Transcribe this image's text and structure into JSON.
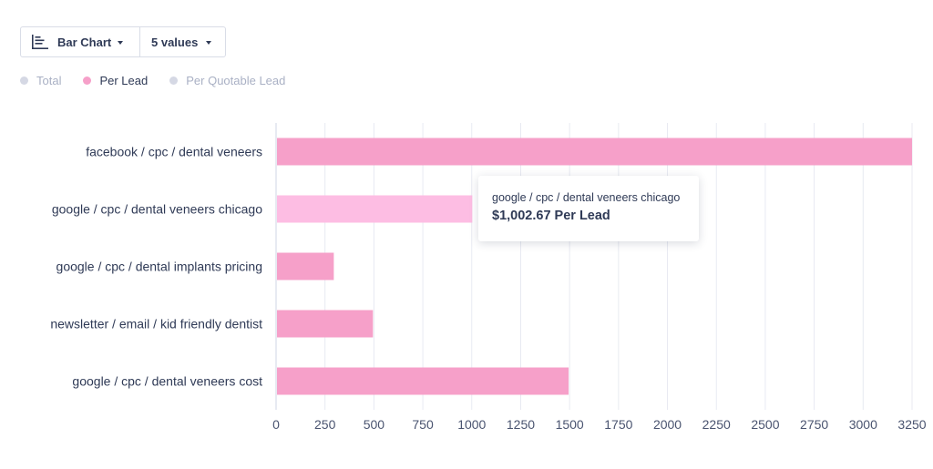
{
  "toolbar": {
    "chart_type_label": "Bar Chart",
    "values_label": "5 values"
  },
  "legend": [
    {
      "label": "Total",
      "color": "#d5d8e4",
      "active": false
    },
    {
      "label": "Per Lead",
      "color": "#f6a0c9",
      "active": true
    },
    {
      "label": "Per Quotable Lead",
      "color": "#d5d8e4",
      "active": false
    }
  ],
  "tooltip": {
    "title": "google / cpc / dental veneers chicago",
    "value": "$1,002.67 Per Lead"
  },
  "chart_data": {
    "type": "bar",
    "orientation": "horizontal",
    "categories": [
      "facebook / cpc / dental veneers",
      "google / cpc / dental veneers chicago",
      "google / cpc / dental implants pricing",
      "newsletter / email / kid friendly dentist",
      "google / cpc / dental veneers cost"
    ],
    "series": [
      {
        "name": "Per Lead",
        "values": [
          3250,
          1002.67,
          295,
          495,
          1495
        ]
      }
    ],
    "xlim": [
      0,
      3250
    ],
    "xticks": [
      "0",
      "250",
      "500",
      "750",
      "1000",
      "1250",
      "1500",
      "1750",
      "2000",
      "2250",
      "2500",
      "2750",
      "3000",
      "3250"
    ],
    "grid": true,
    "highlight_index": 1,
    "colors": {
      "bar": "#f6a0c9",
      "bar_highlight": "#fdbde3",
      "grid": "#e8eaf2",
      "axis": "#cfd4e4"
    }
  }
}
